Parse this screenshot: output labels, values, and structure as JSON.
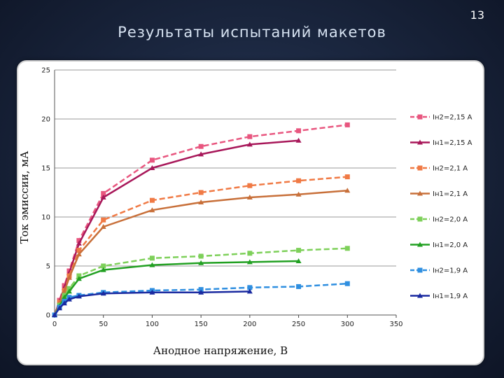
{
  "slide": {
    "title": "Результаты испытаний макетов",
    "number": "13"
  },
  "chart_data": {
    "type": "line",
    "title": "",
    "xlabel": "Анодное напряжение, В",
    "ylabel": "Ток эмиссии, мА",
    "xlim": [
      0,
      350
    ],
    "ylim": [
      0,
      25
    ],
    "xticks": [
      0,
      50,
      100,
      150,
      200,
      250,
      300,
      350
    ],
    "yticks": [
      0,
      5,
      10,
      15,
      20,
      25
    ],
    "grid": true,
    "legend_position": "right",
    "series": [
      {
        "name": "Iн2=2,15 А",
        "color": "#e8567f",
        "dashed": true,
        "marker": "square",
        "x": [
          0,
          5,
          10,
          15,
          25,
          50,
          100,
          150,
          200,
          250,
          300
        ],
        "y": [
          0,
          1.5,
          3,
          4.5,
          7.6,
          12.4,
          15.8,
          17.2,
          18.2,
          18.8,
          19.4
        ]
      },
      {
        "name": "Iн1=2,15 А",
        "color": "#a8185a",
        "dashed": false,
        "marker": "triangle",
        "x": [
          0,
          5,
          10,
          15,
          25,
          50,
          100,
          150,
          200,
          250
        ],
        "y": [
          0,
          1.4,
          2.8,
          4.3,
          7.3,
          12.0,
          15.0,
          16.4,
          17.4,
          17.8
        ]
      },
      {
        "name": "Iн2=2,1 А",
        "color": "#f07a45",
        "dashed": true,
        "marker": "square",
        "x": [
          0,
          5,
          10,
          15,
          25,
          50,
          100,
          150,
          200,
          250,
          300
        ],
        "y": [
          0,
          1.3,
          2.5,
          4.0,
          6.6,
          9.7,
          11.7,
          12.5,
          13.2,
          13.7,
          14.1
        ]
      },
      {
        "name": "Iн1=2,1 А",
        "color": "#c8703a",
        "dashed": false,
        "marker": "triangle",
        "x": [
          0,
          5,
          10,
          15,
          25,
          50,
          100,
          150,
          200,
          250,
          300
        ],
        "y": [
          0,
          1.2,
          2.4,
          3.8,
          6.2,
          9.0,
          10.7,
          11.5,
          12.0,
          12.3,
          12.7
        ]
      },
      {
        "name": "Iн2=2,0 А",
        "color": "#7ed05a",
        "dashed": true,
        "marker": "square",
        "x": [
          0,
          5,
          10,
          15,
          25,
          50,
          100,
          150,
          200,
          250,
          300
        ],
        "y": [
          0,
          1.0,
          2.0,
          2.7,
          4.0,
          5.0,
          5.8,
          6.0,
          6.3,
          6.6,
          6.8
        ]
      },
      {
        "name": "Iн1=2,0 А",
        "color": "#22a022",
        "dashed": false,
        "marker": "triangle",
        "x": [
          0,
          5,
          10,
          15,
          25,
          50,
          100,
          150,
          200,
          250
        ],
        "y": [
          0,
          0.9,
          1.8,
          2.4,
          3.7,
          4.6,
          5.1,
          5.3,
          5.4,
          5.5
        ]
      },
      {
        "name": "Iн2=1,9 А",
        "color": "#2f8fe0",
        "dashed": true,
        "marker": "square",
        "x": [
          0,
          5,
          10,
          15,
          25,
          50,
          100,
          150,
          200,
          250,
          300
        ],
        "y": [
          0,
          0.8,
          1.4,
          1.8,
          2.0,
          2.3,
          2.5,
          2.6,
          2.8,
          2.9,
          3.2
        ]
      },
      {
        "name": "Iн1=1,9 А",
        "color": "#1a2aa0",
        "dashed": false,
        "marker": "triangle",
        "x": [
          0,
          5,
          10,
          15,
          25,
          50,
          100,
          150,
          200
        ],
        "y": [
          0,
          0.7,
          1.2,
          1.6,
          1.9,
          2.2,
          2.3,
          2.3,
          2.4
        ]
      }
    ]
  }
}
